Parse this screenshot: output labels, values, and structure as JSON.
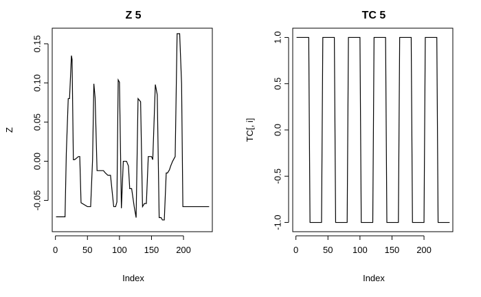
{
  "chart_data": [
    {
      "type": "line",
      "title": "Z 5",
      "xlabel": "Index",
      "ylabel": "Z",
      "xlim": [
        -5,
        245
      ],
      "ylim": [
        -0.09,
        0.17
      ],
      "xticks": [
        0,
        50,
        100,
        150,
        200
      ],
      "xtick_labels": [
        "0",
        "50",
        "100",
        "150",
        "200"
      ],
      "yticks": [
        -0.05,
        0.0,
        0.05,
        0.1,
        0.15
      ],
      "ytick_labels": [
        "-0.05",
        "0.00",
        "0.05",
        "0.10",
        "0.15"
      ],
      "grid": false,
      "series": [
        {
          "x": [
            1,
            15,
            17,
            20,
            22,
            25,
            26,
            28,
            30,
            36,
            38,
            40,
            50,
            52,
            55,
            58,
            60,
            62,
            65,
            75,
            78,
            82,
            86,
            91,
            94,
            96,
            98,
            100,
            103,
            106,
            109,
            111,
            114,
            116,
            119,
            123,
            126,
            129,
            133,
            136,
            139,
            142,
            145,
            148,
            150,
            152,
            156,
            159,
            162,
            165,
            167,
            170,
            173,
            175,
            178,
            180,
            183,
            187,
            190,
            194,
            197,
            199,
            202,
            205,
            208,
            211,
            213,
            216,
            219,
            222,
            224,
            228,
            240
          ],
          "y": [
            -0.071,
            -0.071,
            0.01,
            0.08,
            0.08,
            0.135,
            0.13,
            0.002,
            0.002,
            0.006,
            0.006,
            -0.053,
            -0.058,
            -0.058,
            -0.058,
            0.002,
            0.099,
            0.081,
            -0.012,
            -0.012,
            -0.015,
            -0.018,
            -0.018,
            -0.058,
            -0.058,
            -0.052,
            0.104,
            0.101,
            -0.06,
            0.0,
            0.0,
            0.0,
            -0.006,
            -0.035,
            -0.035,
            -0.058,
            -0.072,
            0.08,
            0.076,
            -0.058,
            -0.054,
            -0.054,
            0.006,
            0.006,
            0.006,
            0.002,
            0.098,
            0.085,
            -0.072,
            -0.072,
            -0.075,
            -0.075,
            -0.015,
            -0.015,
            -0.011,
            -0.006,
            0.0,
            0.006,
            0.163,
            0.163,
            0.099,
            -0.058,
            -0.058,
            -0.058,
            -0.058,
            -0.058,
            -0.058,
            -0.058,
            -0.058,
            -0.058,
            -0.058,
            -0.058,
            -0.058
          ]
        }
      ]
    },
    {
      "type": "line",
      "title": "TC 5",
      "xlabel": "Index",
      "ylabel": "TC[, i]",
      "xlim": [
        -5,
        245
      ],
      "ylim": [
        -1.1,
        1.1
      ],
      "xticks": [
        0,
        50,
        100,
        150,
        200
      ],
      "xtick_labels": [
        "0",
        "50",
        "100",
        "150",
        "200"
      ],
      "yticks": [
        -1.0,
        -0.5,
        0.0,
        0.5,
        1.0
      ],
      "ytick_labels": [
        "-1.0",
        "-0.5",
        "0.0",
        "0.5",
        "1.0"
      ],
      "grid": false,
      "series": [
        {
          "x": [
            1,
            20,
            21,
            22,
            25,
            40,
            41,
            42,
            45,
            60,
            61,
            62,
            65,
            80,
            81,
            82,
            85,
            100,
            101,
            102,
            105,
            120,
            121,
            122,
            125,
            140,
            141,
            142,
            145,
            160,
            161,
            162,
            165,
            180,
            181,
            182,
            185,
            200,
            201,
            202,
            205,
            220,
            221,
            222,
            225,
            240
          ],
          "y": [
            1,
            1,
            0,
            -1,
            -1,
            -1,
            0,
            1,
            1,
            1,
            0,
            -1,
            -1,
            -1,
            0,
            1,
            1,
            1,
            0,
            -1,
            -1,
            -1,
            0,
            1,
            1,
            1,
            0,
            -1,
            -1,
            -1,
            0,
            1,
            1,
            1,
            0,
            -1,
            -1,
            -1,
            0,
            1,
            1,
            1,
            0,
            -1,
            -1,
            -1
          ]
        }
      ]
    }
  ]
}
